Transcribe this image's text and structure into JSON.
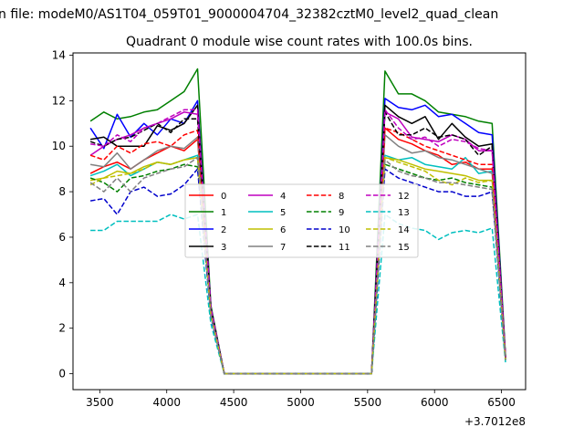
{
  "suptitle": "n file: modeM0/AS1T04_059T01_9000004704_32382cztM0_level2_quad_clean",
  "chart_data": {
    "type": "line",
    "title": "Quadrant 0 module wise count rates with 100.0s bins.",
    "xlabel": "",
    "ylabel": "",
    "x_offset_label": "+3.7012e8",
    "xlim": [
      3300,
      6680
    ],
    "ylim": [
      -0.7,
      14.1
    ],
    "x_ticks": [
      3500,
      4000,
      4500,
      5000,
      5500,
      6000,
      6500
    ],
    "y_ticks": [
      0,
      2,
      4,
      6,
      8,
      10,
      12,
      14
    ],
    "grid": false,
    "legend": {
      "placement": "center",
      "columns": 4
    },
    "x": [
      3430,
      3530,
      3630,
      3730,
      3830,
      3930,
      4030,
      4130,
      4230,
      4330,
      4430,
      4530,
      4630,
      4730,
      4830,
      4930,
      5030,
      5130,
      5230,
      5330,
      5430,
      5530,
      5630,
      5730,
      5830,
      5930,
      6030,
      6130,
      6230,
      6330,
      6430,
      6530
    ],
    "series": [
      {
        "name": "0",
        "color": "#ff0000",
        "dash": "solid",
        "values": [
          8.8,
          9.1,
          9.3,
          9.0,
          9.4,
          9.7,
          10.0,
          9.8,
          10.3,
          2.8,
          0,
          0,
          0,
          0,
          0,
          0,
          0,
          0,
          0,
          0,
          0,
          0,
          10.8,
          10.3,
          10.1,
          9.8,
          9.6,
          9.2,
          9.3,
          9.0,
          9.0,
          0.7
        ]
      },
      {
        "name": "1",
        "color": "#008000",
        "dash": "solid",
        "values": [
          11.1,
          11.5,
          11.2,
          11.3,
          11.5,
          11.6,
          12.0,
          12.4,
          13.4,
          3.0,
          0,
          0,
          0,
          0,
          0,
          0,
          0,
          0,
          0,
          0,
          0,
          0,
          13.3,
          12.3,
          12.3,
          12.0,
          11.5,
          11.4,
          11.3,
          11.1,
          11.0,
          0.8
        ]
      },
      {
        "name": "2",
        "color": "#0000ff",
        "dash": "solid",
        "values": [
          10.8,
          9.9,
          11.4,
          10.4,
          11.0,
          10.5,
          11.2,
          11.0,
          12.0,
          2.9,
          0,
          0,
          0,
          0,
          0,
          0,
          0,
          0,
          0,
          0,
          0,
          0,
          12.1,
          11.7,
          11.6,
          11.8,
          11.3,
          11.4,
          11.0,
          10.6,
          10.5,
          0.7
        ]
      },
      {
        "name": "3",
        "color": "#000000",
        "dash": "solid",
        "values": [
          10.3,
          10.4,
          10.0,
          10.0,
          10.0,
          10.9,
          10.7,
          11.0,
          11.8,
          2.8,
          0,
          0,
          0,
          0,
          0,
          0,
          0,
          0,
          0,
          0,
          0,
          0,
          11.8,
          11.3,
          11.0,
          11.3,
          10.3,
          11.0,
          10.4,
          10.0,
          10.1,
          0.7
        ]
      },
      {
        "name": "4",
        "color": "#bf00bf",
        "dash": "solid",
        "values": [
          9.6,
          10.0,
          10.3,
          10.5,
          10.8,
          11.0,
          11.2,
          11.5,
          11.4,
          2.8,
          0,
          0,
          0,
          0,
          0,
          0,
          0,
          0,
          0,
          0,
          0,
          0,
          11.5,
          11.2,
          10.4,
          10.3,
          10.2,
          10.5,
          10.3,
          9.8,
          9.8,
          0.7
        ]
      },
      {
        "name": "5",
        "color": "#00bfbf",
        "dash": "solid",
        "values": [
          8.7,
          8.9,
          9.2,
          8.7,
          9.0,
          9.3,
          9.2,
          9.4,
          9.6,
          2.6,
          0,
          0,
          0,
          0,
          0,
          0,
          0,
          0,
          0,
          0,
          0,
          0,
          9.6,
          9.4,
          9.5,
          9.2,
          9.1,
          9.0,
          9.5,
          8.8,
          8.9,
          0.6
        ]
      },
      {
        "name": "6",
        "color": "#bfbf00",
        "dash": "solid",
        "values": [
          8.5,
          8.6,
          8.9,
          8.8,
          9.1,
          9.3,
          9.2,
          9.4,
          9.5,
          2.6,
          0,
          0,
          0,
          0,
          0,
          0,
          0,
          0,
          0,
          0,
          0,
          0,
          9.5,
          9.4,
          9.2,
          9.0,
          8.9,
          8.8,
          8.7,
          8.5,
          8.5,
          0.6
        ]
      },
      {
        "name": "7",
        "color": "#808080",
        "dash": "solid",
        "values": [
          9.2,
          9.1,
          9.7,
          9.0,
          9.4,
          9.8,
          10.0,
          9.9,
          10.4,
          2.7,
          0,
          0,
          0,
          0,
          0,
          0,
          0,
          0,
          0,
          0,
          0,
          0,
          10.5,
          10.0,
          9.7,
          9.8,
          9.5,
          9.4,
          9.2,
          9.0,
          8.8,
          0.6
        ]
      },
      {
        "name": "8",
        "color": "#ff0000",
        "dash": "dashed",
        "values": [
          9.6,
          9.4,
          10.0,
          9.7,
          10.1,
          10.2,
          10.0,
          10.5,
          10.7,
          2.8,
          0,
          0,
          0,
          0,
          0,
          0,
          0,
          0,
          0,
          0,
          0,
          0,
          10.8,
          10.6,
          10.3,
          10.0,
          9.8,
          9.6,
          9.4,
          9.2,
          9.2,
          0.7
        ]
      },
      {
        "name": "9",
        "color": "#008000",
        "dash": "dashed",
        "values": [
          8.6,
          8.4,
          8.0,
          8.6,
          8.7,
          8.9,
          9.0,
          9.2,
          9.1,
          2.6,
          0,
          0,
          0,
          0,
          0,
          0,
          0,
          0,
          0,
          0,
          0,
          0,
          9.2,
          9.0,
          8.8,
          8.6,
          8.5,
          8.6,
          8.4,
          8.3,
          8.2,
          0.6
        ]
      },
      {
        "name": "10",
        "color": "#0000cc",
        "dash": "dashed",
        "values": [
          7.6,
          7.7,
          7.0,
          8.0,
          8.2,
          7.8,
          7.9,
          8.3,
          9.0,
          2.5,
          0,
          0,
          0,
          0,
          0,
          0,
          0,
          0,
          0,
          0,
          0,
          0,
          9.0,
          8.6,
          8.4,
          8.2,
          8.0,
          8.0,
          7.8,
          7.8,
          8.0,
          0.6
        ]
      },
      {
        "name": "11",
        "color": "#000000",
        "dash": "dashed",
        "values": [
          10.2,
          10.0,
          10.3,
          10.4,
          10.7,
          11.0,
          10.6,
          11.2,
          11.2,
          2.9,
          0,
          0,
          0,
          0,
          0,
          0,
          0,
          0,
          0,
          0,
          0,
          0,
          11.5,
          10.5,
          10.5,
          10.8,
          10.4,
          10.5,
          10.3,
          9.6,
          10.0,
          0.7
        ]
      },
      {
        "name": "12",
        "color": "#bf00bf",
        "dash": "dashed",
        "values": [
          10.1,
          10.0,
          10.5,
          10.2,
          10.8,
          11.0,
          11.3,
          11.6,
          11.6,
          2.9,
          0,
          0,
          0,
          0,
          0,
          0,
          0,
          0,
          0,
          0,
          0,
          0,
          11.6,
          10.8,
          10.3,
          10.4,
          10.0,
          10.3,
          10.2,
          9.9,
          9.8,
          0.7
        ]
      },
      {
        "name": "13",
        "color": "#00bfbf",
        "dash": "dashed",
        "values": [
          6.3,
          6.3,
          6.7,
          6.7,
          6.7,
          6.7,
          7.0,
          6.8,
          7.0,
          2.2,
          0,
          0,
          0,
          0,
          0,
          0,
          0,
          0,
          0,
          0,
          0,
          0,
          7.0,
          6.6,
          6.4,
          6.3,
          5.9,
          6.2,
          6.3,
          6.2,
          6.4,
          0.5
        ]
      },
      {
        "name": "14",
        "color": "#bfbf00",
        "dash": "dashed",
        "values": [
          8.3,
          8.6,
          8.7,
          8.8,
          9.0,
          9.3,
          9.2,
          9.4,
          9.5,
          2.6,
          0,
          0,
          0,
          0,
          0,
          0,
          0,
          0,
          0,
          0,
          0,
          0,
          9.5,
          9.3,
          9.1,
          8.9,
          8.5,
          8.3,
          8.6,
          8.4,
          8.5,
          0.6
        ]
      },
      {
        "name": "15",
        "color": "#808080",
        "dash": "dashed",
        "values": [
          8.4,
          8.0,
          8.6,
          8.0,
          8.6,
          8.8,
          9.0,
          9.1,
          9.5,
          2.6,
          0,
          0,
          0,
          0,
          0,
          0,
          0,
          0,
          0,
          0,
          0,
          0,
          9.4,
          8.9,
          8.7,
          8.6,
          8.4,
          8.4,
          8.3,
          8.2,
          8.1,
          0.6
        ]
      }
    ]
  }
}
